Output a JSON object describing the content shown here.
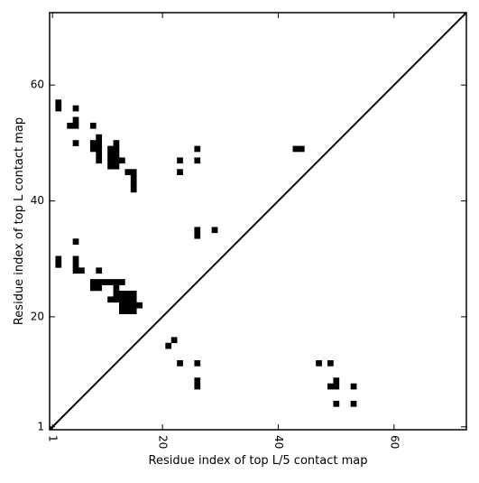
{
  "chart_data": {
    "type": "heatmap",
    "title": "",
    "xlabel": "Residue index of top L/5 contact map",
    "ylabel": "Residue index of top L contact map",
    "xlim": [
      0.5,
      72.5
    ],
    "ylim": [
      0.5,
      72.5
    ],
    "x_ticks": [
      {
        "value": 1,
        "label": "1"
      },
      {
        "value": 20,
        "label": "20"
      },
      {
        "value": 40,
        "label": "40"
      },
      {
        "value": 60,
        "label": "60"
      }
    ],
    "y_ticks": [
      {
        "value": 1,
        "label": "1"
      },
      {
        "value": 20,
        "label": "20"
      },
      {
        "value": 40,
        "label": "40"
      },
      {
        "value": 60,
        "label": "60"
      }
    ],
    "x_tick_label_rotation": -90,
    "grid": false,
    "diagonal_line": true,
    "cell_color": "#000000",
    "background_color": "#ffffff",
    "upper_triangle_contacts": [
      [
        2,
        57
      ],
      [
        2,
        56
      ],
      [
        5,
        56
      ],
      [
        5,
        54
      ],
      [
        4,
        53
      ],
      [
        5,
        53
      ],
      [
        5,
        50
      ],
      [
        8,
        53
      ],
      [
        9,
        51
      ],
      [
        8,
        50
      ],
      [
        9,
        50
      ],
      [
        8,
        49
      ],
      [
        9,
        49
      ],
      [
        9,
        48
      ],
      [
        9,
        47
      ],
      [
        11,
        49
      ],
      [
        12,
        49
      ],
      [
        12,
        50
      ],
      [
        11,
        48
      ],
      [
        12,
        48
      ],
      [
        11,
        47
      ],
      [
        12,
        47
      ],
      [
        13,
        47
      ],
      [
        11,
        46
      ],
      [
        12,
        46
      ],
      [
        14,
        45
      ],
      [
        15,
        45
      ],
      [
        15,
        44
      ],
      [
        15,
        43
      ],
      [
        15,
        42
      ],
      [
        23,
        47
      ],
      [
        23,
        45
      ],
      [
        26,
        49
      ],
      [
        26,
        47
      ],
      [
        26,
        35
      ],
      [
        26,
        34
      ],
      [
        29,
        35
      ],
      [
        43,
        49
      ],
      [
        44,
        49
      ],
      [
        5,
        33
      ],
      [
        2,
        30
      ],
      [
        2,
        29
      ],
      [
        5,
        30
      ],
      [
        5,
        29
      ],
      [
        5,
        28
      ],
      [
        6,
        28
      ],
      [
        9,
        28
      ],
      [
        8,
        26
      ],
      [
        9,
        26
      ],
      [
        10,
        26
      ],
      [
        11,
        26
      ],
      [
        12,
        26
      ],
      [
        13,
        26
      ],
      [
        8,
        25
      ],
      [
        9,
        25
      ],
      [
        12,
        25
      ],
      [
        11,
        23
      ],
      [
        12,
        23
      ],
      [
        13,
        23
      ],
      [
        14,
        23
      ],
      [
        15,
        23
      ],
      [
        12,
        24
      ],
      [
        13,
        24
      ],
      [
        14,
        24
      ],
      [
        15,
        24
      ],
      [
        13,
        22
      ],
      [
        14,
        22
      ],
      [
        15,
        22
      ],
      [
        16,
        22
      ],
      [
        13,
        21
      ],
      [
        14,
        21
      ],
      [
        15,
        21
      ]
    ],
    "lower_triangle_contacts": [
      [
        22,
        16
      ],
      [
        21,
        15
      ],
      [
        23,
        12
      ],
      [
        26,
        12
      ],
      [
        47,
        12
      ],
      [
        49,
        12
      ],
      [
        26,
        9
      ],
      [
        26,
        8
      ],
      [
        50,
        9
      ],
      [
        49,
        8
      ],
      [
        50,
        8
      ],
      [
        53,
        8
      ],
      [
        50,
        5
      ],
      [
        53,
        5
      ]
    ]
  }
}
